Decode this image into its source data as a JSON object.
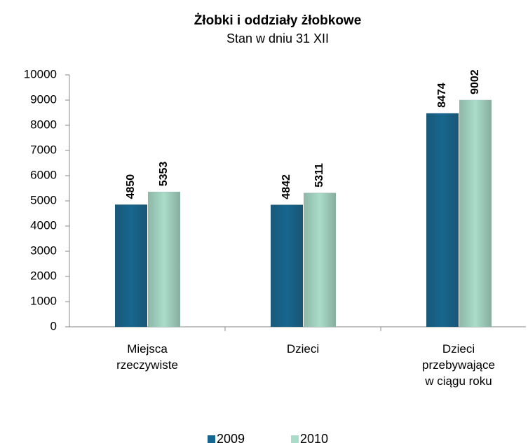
{
  "chart_data": {
    "type": "bar",
    "title": "Żłobki i oddziały żłobkowe",
    "subtitle": "Stan w dniu 31 XII",
    "categories": [
      "Miejsca\nrzeczywiste",
      "Dzieci",
      "Dzieci\nprzebywające\nw ciągu roku"
    ],
    "series": [
      {
        "name": "2009",
        "color": "#17668f",
        "values": [
          4850,
          4842,
          8474
        ]
      },
      {
        "name": "2010",
        "color": "#a9dcc9",
        "values": [
          5353,
          5311,
          9002
        ]
      }
    ],
    "ylim": [
      0,
      10000
    ],
    "yticks": [
      0,
      1000,
      2000,
      3000,
      4000,
      5000,
      6000,
      7000,
      8000,
      9000,
      10000
    ],
    "legend": "bottom"
  }
}
